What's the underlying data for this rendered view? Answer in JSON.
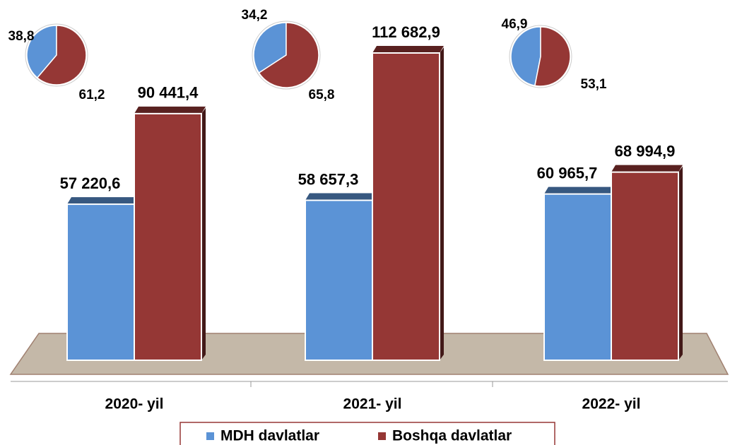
{
  "chart_data": [
    {
      "type": "bar",
      "categories": [
        "2020- yil",
        "2021- yil",
        "2022- yil"
      ],
      "series": [
        {
          "name": "MDH davlatlar",
          "color": "#5b93d6",
          "values": [
            57220.6,
            58657.3,
            60965.7
          ],
          "value_labels": [
            "57 220,6",
            "58 657,3",
            "60 965,7"
          ]
        },
        {
          "name": "Boshqa davlatlar",
          "color": "#953735",
          "values": [
            90441.4,
            112682.9,
            68994.9
          ],
          "value_labels": [
            "90 441,4",
            "112 682,9",
            "68 994,9"
          ]
        }
      ]
    },
    {
      "type": "pie",
      "values": [
        38.8,
        61.2
      ],
      "value_labels": [
        "38,8",
        "61,2"
      ],
      "colors": [
        "#5b93d6",
        "#953735"
      ]
    },
    {
      "type": "pie",
      "values": [
        34.2,
        65.8
      ],
      "value_labels": [
        "34,2",
        "65,8"
      ],
      "colors": [
        "#5b93d6",
        "#953735"
      ]
    },
    {
      "type": "pie",
      "values": [
        46.9,
        53.1
      ],
      "value_labels": [
        "46,9",
        "53,1"
      ],
      "colors": [
        "#5b93d6",
        "#953735"
      ]
    }
  ]
}
